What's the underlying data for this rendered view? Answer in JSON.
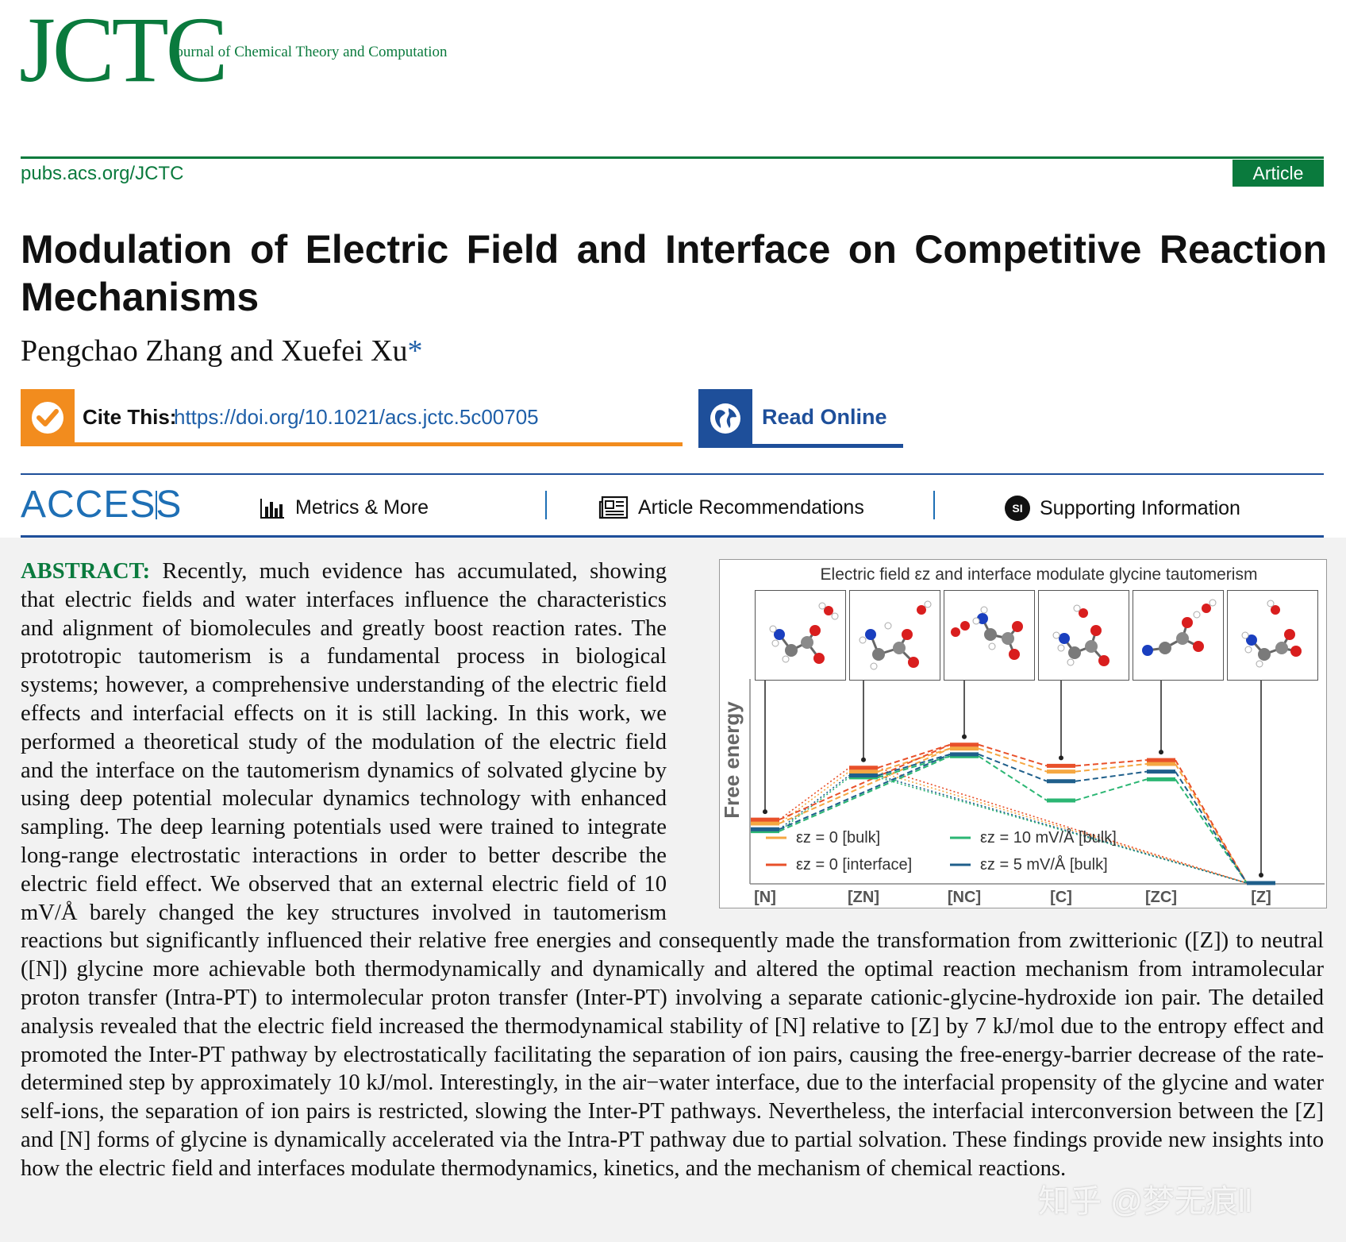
{
  "journal": {
    "logo": "JCTC",
    "full_name": "Journal of Chemical Theory and Computation",
    "url": "pubs.acs.org/JCTC",
    "article_type": "Article"
  },
  "paper": {
    "title": "Modulation of Electric Field and Interface on Competitive Reaction Mechanisms",
    "authors": "Pengchao Zhang and Xuefei Xu",
    "corresponding_mark": "*"
  },
  "cite": {
    "label": "Cite This:",
    "doi": "https://doi.org/10.1021/acs.jctc.5c00705",
    "read_online": "Read Online",
    "icon": "check-icon",
    "read_icon": "globe-icon"
  },
  "access_bar": {
    "access": "ACCESS",
    "metrics": "Metrics & More",
    "recommendations": "Article Recommendations",
    "supporting": "Supporting Information",
    "si_badge": "SI"
  },
  "abstract": {
    "label": "ABSTRACT:",
    "text": "Recently, much evidence has accumulated, showing that electric fields and water interfaces influence the characteristics and alignment of biomolecules and greatly boost reaction rates. The prototropic tautomerism is a fundamental process in biological systems; however, a comprehensive understanding of the electric field effects and interfacial effects on it is still lacking. In this work, we performed a theoretical study of the modulation of the electric field and the interface on the tautomerism dynamics of solvated glycine by using deep potential molecular dynamics technology with enhanced sampling. The deep learning potentials used were trained to integrate long-range electrostatic interactions in order to better describe the electric field effect. We observed that an external electric field of 10 mV/Å barely changed the key structures involved in tautomerism reactions but significantly influenced their relative free energies and consequently made the transformation from zwitterionic ([Z]) to neutral ([N]) glycine more achievable both thermodynamically and dynamically and altered the optimal reaction mechanism from intramolecular proton transfer (Intra-PT) to intermolecular proton transfer (Inter-PT) involving a separate cationic-glycine-hydroxide ion pair. The detailed analysis revealed that the electric field increased the thermodynamical stability of [N] relative to [Z] by 7 kJ/mol due to the entropy effect and promoted the Inter-PT pathway by electrostatically facilitating the separation of ion pairs, causing the free-energy-barrier decrease of the rate-determined step by approximately 10 kJ/mol. Interestingly, in the air−water interface, due to the interfacial propensity of the glycine and water self-ions, the separation of ion pairs is restricted, slowing the Inter-PT pathways. Nevertheless, the interfacial interconversion between the [Z] and [N] forms of glycine is dynamically accelerated via the Intra-PT pathway due to partial solvation. These findings provide new insights into how the electric field and interfaces modulate thermodynamics, kinetics, and the mechanism of chemical reactions."
  },
  "watermark": "知乎 @梦无痕ll",
  "chart_data": {
    "type": "line",
    "title": "Electric field εz and interface modulate glycine tautomerism",
    "ylabel": "Free energy",
    "xlabel": "",
    "categories": [
      "[N]",
      "[ZN]",
      "[NC]",
      "[C]",
      "[ZC]",
      "[Z]"
    ],
    "y_units": "relative (no numeric ticks shown)",
    "grid": false,
    "legend_position": "bottom-left",
    "series": [
      {
        "name": "εz = 0 [bulk]",
        "color": "#f5a742",
        "values": [
          0.31,
          0.58,
          0.7,
          0.58,
          0.62,
          0.0
        ]
      },
      {
        "name": "εz = 0 [interface]",
        "color": "#e8502a",
        "values": [
          0.33,
          0.6,
          0.72,
          0.61,
          0.64,
          0.0
        ]
      },
      {
        "name": "εz = 10 mV/Å [bulk]",
        "color": "#2bb673",
        "values": [
          0.27,
          0.55,
          0.66,
          0.43,
          0.54,
          0.0
        ]
      },
      {
        "name": "εz = 5 mV/Å [bulk]",
        "color": "#1f5f8b",
        "values": [
          0.28,
          0.56,
          0.67,
          0.53,
          0.58,
          0.0
        ]
      }
    ],
    "ylim": [
      0,
      1
    ]
  }
}
